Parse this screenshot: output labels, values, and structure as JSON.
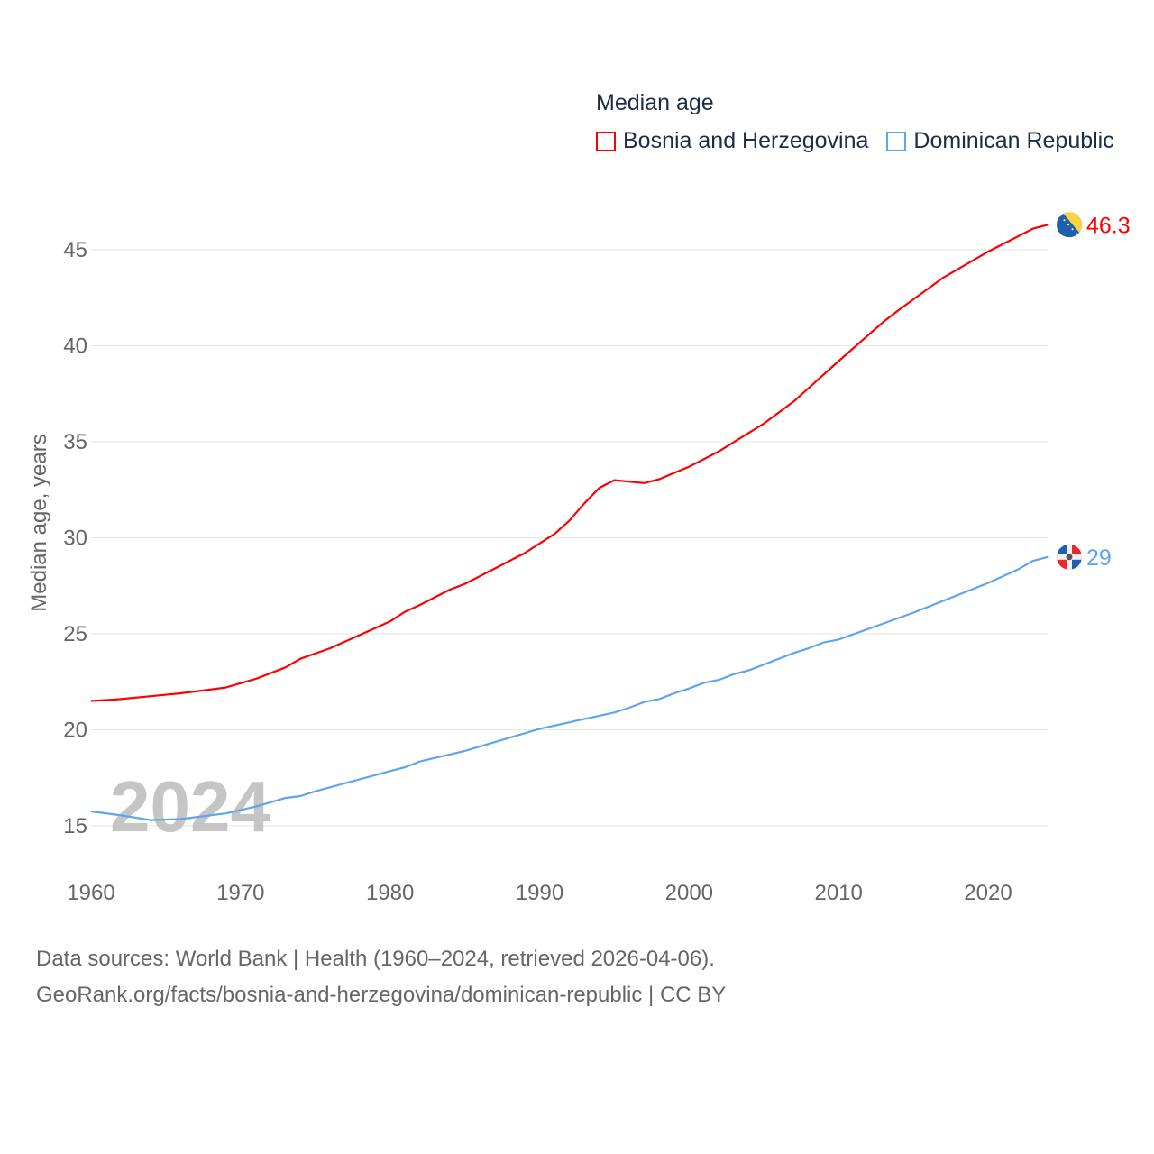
{
  "chart_data": {
    "type": "line",
    "title": "Median age",
    "ylabel": "Median age, years",
    "xlabel": "",
    "xlim": [
      1960,
      2024
    ],
    "ylim": [
      13,
      47
    ],
    "yticks": [
      15,
      20,
      25,
      30,
      35,
      40,
      45
    ],
    "xticks": [
      1960,
      1970,
      1980,
      1990,
      2000,
      2010,
      2020
    ],
    "grid": true,
    "legend_position": "top-right",
    "year_watermark": "2024",
    "series": [
      {
        "name": "Bosnia and Herzegovina",
        "color": "#ff0000",
        "end_label": "46.3",
        "flag": "bosnia-flag",
        "points": [
          [
            1960,
            21.5
          ],
          [
            1962,
            21.6
          ],
          [
            1964,
            21.75
          ],
          [
            1966,
            21.9
          ],
          [
            1969,
            22.2
          ],
          [
            1971,
            22.65
          ],
          [
            1973,
            23.25
          ],
          [
            1974,
            23.7
          ],
          [
            1976,
            24.25
          ],
          [
            1978,
            24.95
          ],
          [
            1980,
            25.65
          ],
          [
            1981,
            26.15
          ],
          [
            1982,
            26.5
          ],
          [
            1984,
            27.3
          ],
          [
            1985,
            27.6
          ],
          [
            1987,
            28.4
          ],
          [
            1989,
            29.2
          ],
          [
            1991,
            30.2
          ],
          [
            1992,
            30.9
          ],
          [
            1993,
            31.8
          ],
          [
            1994,
            32.6
          ],
          [
            1995,
            33.0
          ],
          [
            1997,
            32.85
          ],
          [
            1998,
            33.05
          ],
          [
            2000,
            33.7
          ],
          [
            2002,
            34.5
          ],
          [
            2005,
            35.95
          ],
          [
            2007,
            37.1
          ],
          [
            2009,
            38.5
          ],
          [
            2010,
            39.2
          ],
          [
            2013,
            41.25
          ],
          [
            2014,
            41.85
          ],
          [
            2017,
            43.55
          ],
          [
            2020,
            44.9
          ],
          [
            2023,
            46.1
          ],
          [
            2024,
            46.3
          ]
        ]
      },
      {
        "name": "Dominican Republic",
        "color": "#5ea5ec",
        "end_label": "29",
        "flag": "dominican-flag",
        "points": [
          [
            1960,
            15.75
          ],
          [
            1962,
            15.55
          ],
          [
            1964,
            15.3
          ],
          [
            1966,
            15.35
          ],
          [
            1969,
            15.65
          ],
          [
            1971,
            16.0
          ],
          [
            1973,
            16.45
          ],
          [
            1974,
            16.55
          ],
          [
            1975,
            16.8
          ],
          [
            1980,
            17.85
          ],
          [
            1981,
            18.05
          ],
          [
            1982,
            18.35
          ],
          [
            1985,
            18.9
          ],
          [
            1990,
            20.05
          ],
          [
            1995,
            20.9
          ],
          [
            1996,
            21.15
          ],
          [
            1997,
            21.45
          ],
          [
            1998,
            21.6
          ],
          [
            1999,
            21.9
          ],
          [
            2000,
            22.15
          ],
          [
            2001,
            22.45
          ],
          [
            2002,
            22.6
          ],
          [
            2003,
            22.9
          ],
          [
            2004,
            23.1
          ],
          [
            2005,
            23.4
          ],
          [
            2007,
            24.0
          ],
          [
            2008,
            24.25
          ],
          [
            2009,
            24.55
          ],
          [
            2010,
            24.7
          ],
          [
            2015,
            26.1
          ],
          [
            2020,
            27.65
          ],
          [
            2022,
            28.35
          ],
          [
            2023,
            28.8
          ],
          [
            2024,
            29.0
          ]
        ]
      }
    ]
  },
  "footer": {
    "line1": "Data sources: World Bank | Health (1960–2024, retrieved 2026-04-06).",
    "line2": "GeoRank.org/facts/bosnia-and-herzegovina/dominican-republic | CC BY"
  }
}
